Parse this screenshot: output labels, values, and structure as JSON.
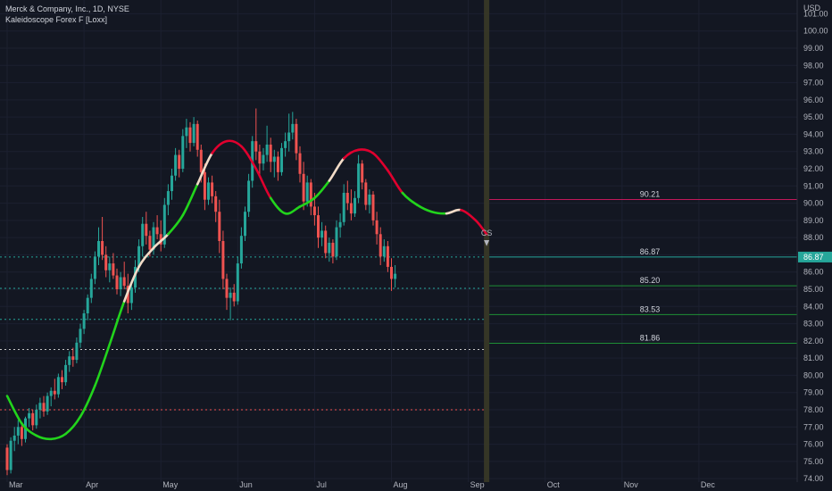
{
  "legend": {
    "title": "Merck & Company, Inc., 1D, NYSE",
    "indicator": "Kaleidoscope Forex F [Loxx]"
  },
  "colors": {
    "background": "#131722",
    "up": "#26a69a",
    "down": "#ef5350",
    "line_up": "#22d41c",
    "line_down": "#e0002e",
    "line_transition": "#f2dcc8",
    "current_marker": "#3a3a27",
    "support_line": "#1f8f36",
    "resistance_line": "#c2185b",
    "current_price_label_bg": "#26a69a"
  },
  "chart_data": {
    "type": "candlestick",
    "title": "Merck & Company, Inc., 1D, NYSE",
    "currency_label": "USD",
    "ylim": [
      73.8,
      101.8
    ],
    "y_ticks": [
      "74.00",
      "75.00",
      "76.00",
      "77.00",
      "78.00",
      "79.00",
      "80.00",
      "81.00",
      "82.00",
      "83.00",
      "84.00",
      "85.00",
      "86.00",
      "87.00",
      "88.00",
      "89.00",
      "90.00",
      "91.00",
      "92.00",
      "93.00",
      "94.00",
      "95.00",
      "96.00",
      "97.00",
      "98.00",
      "99.00",
      "100.00",
      "101.00"
    ],
    "x_ticks": [
      "Mar",
      "Apr",
      "May",
      "Jun",
      "Jul",
      "Aug",
      "Sep",
      "Oct",
      "Nov",
      "Dec"
    ],
    "x_tick_day_index": [
      0,
      21,
      42,
      63,
      84,
      105,
      126,
      147,
      168,
      189
    ],
    "days_total": 204,
    "current_day_index": 131,
    "current_price": "86.87",
    "marker_label": "CS",
    "levels": [
      {
        "label": "90.21",
        "value": 90.21,
        "kind": "resistance"
      },
      {
        "label": "86.87",
        "value": 86.87,
        "kind": "current"
      },
      {
        "label": "85.20",
        "value": 85.2,
        "kind": "support"
      },
      {
        "label": "83.53",
        "value": 83.53,
        "kind": "support"
      },
      {
        "label": "81.86",
        "value": 81.86,
        "kind": "support"
      }
    ],
    "dotted_lines": [
      {
        "value": 86.87,
        "color": "#26a69a"
      },
      {
        "value": 85.05,
        "color": "#26a69a"
      },
      {
        "value": 83.25,
        "color": "#26a69a"
      },
      {
        "value": 81.5,
        "color": "#c8c8c8"
      },
      {
        "value": 78.0,
        "color": "#ef5350"
      }
    ],
    "candles": [
      [
        75.8,
        76.0,
        74.2,
        74.5
      ],
      [
        74.5,
        76.4,
        74.3,
        76.2
      ],
      [
        76.2,
        77.0,
        75.6,
        76.5
      ],
      [
        76.5,
        77.4,
        76.0,
        77.0
      ],
      [
        77.0,
        77.2,
        75.9,
        76.3
      ],
      [
        76.3,
        77.6,
        76.1,
        77.5
      ],
      [
        77.5,
        78.1,
        77.0,
        77.8
      ],
      [
        77.8,
        78.0,
        76.8,
        77.1
      ],
      [
        77.1,
        78.3,
        76.9,
        78.0
      ],
      [
        78.0,
        78.7,
        77.5,
        78.4
      ],
      [
        78.4,
        78.8,
        77.6,
        77.9
      ],
      [
        77.9,
        79.0,
        77.7,
        78.8
      ],
      [
        78.8,
        79.3,
        78.2,
        79.1
      ],
      [
        79.1,
        79.8,
        78.6,
        78.9
      ],
      [
        78.9,
        80.1,
        78.7,
        79.9
      ],
      [
        79.9,
        80.3,
        79.2,
        79.6
      ],
      [
        79.6,
        80.9,
        79.4,
        80.6
      ],
      [
        80.6,
        81.4,
        80.2,
        81.1
      ],
      [
        81.1,
        81.6,
        80.5,
        80.9
      ],
      [
        80.9,
        82.2,
        80.7,
        81.9
      ],
      [
        81.9,
        83.0,
        81.6,
        82.7
      ],
      [
        82.7,
        83.8,
        82.4,
        83.6
      ],
      [
        83.6,
        84.7,
        83.2,
        84.5
      ],
      [
        84.5,
        85.9,
        84.2,
        85.6
      ],
      [
        85.6,
        87.2,
        85.3,
        86.9
      ],
      [
        86.9,
        88.6,
        86.4,
        87.8
      ],
      [
        87.8,
        89.2,
        86.7,
        87.0
      ],
      [
        87.0,
        87.5,
        85.7,
        86.1
      ],
      [
        86.1,
        86.9,
        85.4,
        86.5
      ],
      [
        86.5,
        87.1,
        85.6,
        85.8
      ],
      [
        85.8,
        86.2,
        84.7,
        85.0
      ],
      [
        85.0,
        86.0,
        84.6,
        85.7
      ],
      [
        85.7,
        86.6,
        85.0,
        85.2
      ],
      [
        85.2,
        85.9,
        83.6,
        84.2
      ],
      [
        84.2,
        85.4,
        83.8,
        85.1
      ],
      [
        85.1,
        86.7,
        84.8,
        86.3
      ],
      [
        86.3,
        87.9,
        86.0,
        87.5
      ],
      [
        87.5,
        89.2,
        86.9,
        88.8
      ],
      [
        88.8,
        89.5,
        87.6,
        88.1
      ],
      [
        88.1,
        88.4,
        86.9,
        87.3
      ],
      [
        87.3,
        88.9,
        87.0,
        88.6
      ],
      [
        88.6,
        89.3,
        87.9,
        88.2
      ],
      [
        88.2,
        89.0,
        87.2,
        87.6
      ],
      [
        87.6,
        90.3,
        87.4,
        89.9
      ],
      [
        89.9,
        91.1,
        89.3,
        90.7
      ],
      [
        90.7,
        92.0,
        90.2,
        91.6
      ],
      [
        91.6,
        93.2,
        91.3,
        92.8
      ],
      [
        92.8,
        93.1,
        91.5,
        92.0
      ],
      [
        92.0,
        94.3,
        91.8,
        93.9
      ],
      [
        93.9,
        94.9,
        93.2,
        94.4
      ],
      [
        94.4,
        94.7,
        93.0,
        93.5
      ],
      [
        93.5,
        95.0,
        93.3,
        94.6
      ],
      [
        94.6,
        94.8,
        92.7,
        93.1
      ],
      [
        93.1,
        93.4,
        91.2,
        91.8
      ],
      [
        91.8,
        92.3,
        89.6,
        90.2
      ],
      [
        90.2,
        91.5,
        89.9,
        91.2
      ],
      [
        91.2,
        91.6,
        90.0,
        90.4
      ],
      [
        90.4,
        90.7,
        88.9,
        89.5
      ],
      [
        89.5,
        90.2,
        87.1,
        87.8
      ],
      [
        87.8,
        88.4,
        85.0,
        85.6
      ],
      [
        85.6,
        85.9,
        83.8,
        84.5
      ],
      [
        84.5,
        85.1,
        83.2,
        84.8
      ],
      [
        84.8,
        85.3,
        84.0,
        84.3
      ],
      [
        84.3,
        86.9,
        84.1,
        86.5
      ],
      [
        86.5,
        88.6,
        86.2,
        88.1
      ],
      [
        88.1,
        89.8,
        87.8,
        89.5
      ],
      [
        89.5,
        91.7,
        89.2,
        91.3
      ],
      [
        91.3,
        93.9,
        90.9,
        93.6
      ],
      [
        93.6,
        95.5,
        92.5,
        93.0
      ],
      [
        93.0,
        93.4,
        91.6,
        92.3
      ],
      [
        92.3,
        93.2,
        91.9,
        92.8
      ],
      [
        92.8,
        94.5,
        92.4,
        93.4
      ],
      [
        93.4,
        93.8,
        91.8,
        92.4
      ],
      [
        92.4,
        93.1,
        91.5,
        92.7
      ],
      [
        92.7,
        93.0,
        91.3,
        91.8
      ],
      [
        91.8,
        93.5,
        91.6,
        93.2
      ],
      [
        93.2,
        94.1,
        92.7,
        93.6
      ],
      [
        93.6,
        95.2,
        93.0,
        94.1
      ],
      [
        94.1,
        95.3,
        93.7,
        94.6
      ],
      [
        94.6,
        94.9,
        92.5,
        92.9
      ],
      [
        92.9,
        93.3,
        91.2,
        91.7
      ],
      [
        91.7,
        92.4,
        89.6,
        90.1
      ],
      [
        90.1,
        91.6,
        89.8,
        91.2
      ],
      [
        91.2,
        91.4,
        89.3,
        89.8
      ],
      [
        89.8,
        90.6,
        88.7,
        89.3
      ],
      [
        89.3,
        89.8,
        87.4,
        88.0
      ],
      [
        88.0,
        88.9,
        87.5,
        88.4
      ],
      [
        88.4,
        88.7,
        86.8,
        87.1
      ],
      [
        87.1,
        88.0,
        86.6,
        87.7
      ],
      [
        87.7,
        87.9,
        86.5,
        86.9
      ],
      [
        86.9,
        89.0,
        86.7,
        88.6
      ],
      [
        88.6,
        89.4,
        88.0,
        88.9
      ],
      [
        88.9,
        91.1,
        88.7,
        90.6
      ],
      [
        90.6,
        91.3,
        89.6,
        90.0
      ],
      [
        90.0,
        90.8,
        89.0,
        89.4
      ],
      [
        89.4,
        90.7,
        89.2,
        90.3
      ],
      [
        90.3,
        92.8,
        90.0,
        92.3
      ],
      [
        92.3,
        92.5,
        90.8,
        91.2
      ],
      [
        91.2,
        91.4,
        89.6,
        89.9
      ],
      [
        89.9,
        90.8,
        89.4,
        90.5
      ],
      [
        90.5,
        90.7,
        88.7,
        89.0
      ],
      [
        89.0,
        89.5,
        87.6,
        88.2
      ],
      [
        88.2,
        88.6,
        86.4,
        86.9
      ],
      [
        86.9,
        87.9,
        86.6,
        87.5
      ],
      [
        87.5,
        87.8,
        86.0,
        86.3
      ],
      [
        86.3,
        86.8,
        84.9,
        85.6
      ],
      [
        85.6,
        86.4,
        85.1,
        85.9
      ]
    ],
    "indicator_line": [
      [
        0,
        78.8,
        "d"
      ],
      [
        4,
        77.2,
        "g"
      ],
      [
        8,
        76.5,
        "g"
      ],
      [
        12,
        76.3,
        "g"
      ],
      [
        16,
        76.6,
        "g"
      ],
      [
        20,
        77.6,
        "g"
      ],
      [
        24,
        79.4,
        "g"
      ],
      [
        28,
        81.8,
        "g"
      ],
      [
        32,
        84.3,
        "g"
      ],
      [
        36,
        86.3,
        "t"
      ],
      [
        40,
        87.4,
        "t"
      ],
      [
        44,
        88.2,
        "t"
      ],
      [
        48,
        89.3,
        "g"
      ],
      [
        52,
        91.1,
        "g"
      ],
      [
        56,
        92.9,
        "t"
      ],
      [
        60,
        93.6,
        "d"
      ],
      [
        64,
        93.3,
        "d"
      ],
      [
        68,
        92.0,
        "d"
      ],
      [
        72,
        90.3,
        "d"
      ],
      [
        76,
        89.4,
        "g"
      ],
      [
        80,
        89.8,
        "g"
      ],
      [
        84,
        90.3,
        "g"
      ],
      [
        88,
        91.3,
        "g"
      ],
      [
        92,
        92.6,
        "t"
      ],
      [
        96,
        93.1,
        "d"
      ],
      [
        100,
        92.9,
        "d"
      ],
      [
        104,
        91.9,
        "d"
      ],
      [
        108,
        90.6,
        "d"
      ],
      [
        112,
        89.9,
        "g"
      ],
      [
        116,
        89.5,
        "g"
      ],
      [
        120,
        89.4,
        "g"
      ],
      [
        124,
        89.6,
        "t"
      ],
      [
        128,
        89.0,
        "d"
      ],
      [
        131,
        88.2,
        "d"
      ]
    ]
  }
}
